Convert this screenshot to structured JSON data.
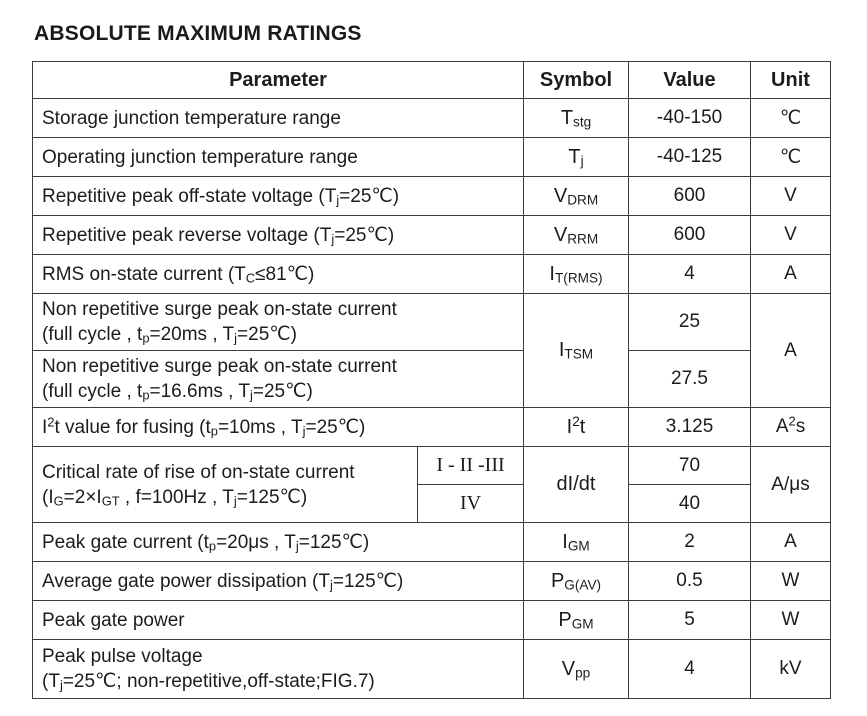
{
  "title": "ABSOLUTE MAXIMUM RATINGS",
  "table": {
    "headers": {
      "parameter": "Parameter",
      "symbol": "Symbol",
      "value": "Value",
      "unit": "Unit"
    },
    "rows": [
      {
        "parameter": "Storage junction temperature range",
        "symbol": "T_{stg}",
        "value": "-40-150",
        "unit": "℃"
      },
      {
        "parameter": "Operating junction temperature range",
        "symbol": "T_{j}",
        "value": "-40-125",
        "unit": "℃"
      },
      {
        "parameter": "Repetitive peak off-state voltage (T_{j}=25℃)",
        "symbol": "V_{DRM}",
        "value": "600",
        "unit": "V"
      },
      {
        "parameter": "Repetitive peak reverse voltage (T_{j}=25℃)",
        "symbol": "V_{RRM}",
        "value": "600",
        "unit": "V"
      },
      {
        "parameter": "RMS on-state current (T_{C}≤81℃)",
        "symbol": "I_{T(RMS)}",
        "value": "4",
        "unit": "A"
      },
      {
        "parameter": "Non repetitive surge peak on-state current\n(full cycle , t_{p}=20ms , T_{j}=25℃)",
        "symbol": "I_{TSM}",
        "value": "25",
        "unit": "A"
      },
      {
        "parameter": "Non repetitive surge peak on-state current\n(full cycle , t_{p}=16.6ms , T_{j}=25℃)",
        "value": "27.5"
      },
      {
        "parameter": "I^{2}t value for fusing (t_{p}=10ms , T_{j}=25℃)",
        "symbol": "I^{2}t",
        "value": "3.125",
        "unit": "A^{2}s"
      },
      {
        "parameter": "Critical rate of rise of on-state current\n(I_{G}=2×I_{GT} , f=100Hz , T_{j}=125℃)",
        "class_label": "I - II -III",
        "symbol": "dI/dt",
        "value": "70",
        "unit": "A/μs"
      },
      {
        "class_label": "IV",
        "value": "40"
      },
      {
        "parameter": "Peak gate current (t_{p}=20μs , T_{j}=125℃)",
        "symbol": "I_{GM}",
        "value": "2",
        "unit": "A"
      },
      {
        "parameter": "Average gate power dissipation (T_{j}=125℃)",
        "symbol": "P_{G(AV)}",
        "value": "0.5",
        "unit": "W"
      },
      {
        "parameter": "Peak gate power",
        "symbol": "P_{GM}",
        "value": "5",
        "unit": "W"
      },
      {
        "parameter": "Peak pulse voltage\n(T_{j}=25℃; non-repetitive,off-state;FIG.7)",
        "symbol": "V_{pp}",
        "value": "4",
        "unit": "kV"
      }
    ]
  }
}
